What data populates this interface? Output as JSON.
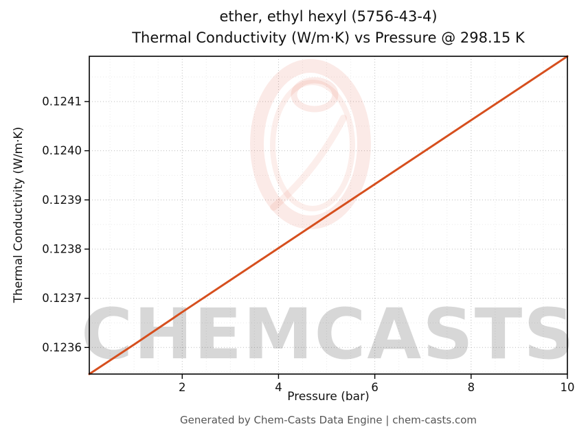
{
  "chart_data": {
    "type": "line",
    "title_line1": "ether, ethyl hexyl (5756-43-4)",
    "title_line2": "Thermal Conductivity (W/m·K) vs Pressure @ 298.15 K",
    "xlabel": "Pressure (bar)",
    "ylabel": "Thermal Conductivity (W/m·K)",
    "xlim": [
      0.07,
      10
    ],
    "ylim": [
      0.123546,
      0.124192
    ],
    "x_ticks": [
      2,
      4,
      6,
      8,
      10
    ],
    "x_tick_labels": [
      "2",
      "4",
      "6",
      "8",
      "10"
    ],
    "y_ticks": [
      0.1236,
      0.1237,
      0.1238,
      0.1239,
      0.124,
      0.1241
    ],
    "y_tick_labels": [
      "0.1236",
      "0.1237",
      "0.1238",
      "0.1239",
      "0.1240",
      "0.1241"
    ],
    "grid": true,
    "legend": "none",
    "series": [
      {
        "name": "thermal-conductivity-vs-pressure",
        "color": "#d64f1e",
        "width": 3,
        "x": [
          0.07,
          1,
          2,
          3,
          4,
          5,
          6,
          7,
          8,
          9,
          10
        ],
        "y": [
          0.123546,
          0.123606,
          0.123672,
          0.123737,
          0.123802,
          0.123867,
          0.123932,
          0.123997,
          0.124062,
          0.124127,
          0.124192
        ]
      }
    ],
    "watermark_text": "CHEMCASTS",
    "watermark_color": "#e0563a"
  },
  "footer": {
    "text": "Generated by Chem-Casts Data Engine | chem-casts.com"
  }
}
